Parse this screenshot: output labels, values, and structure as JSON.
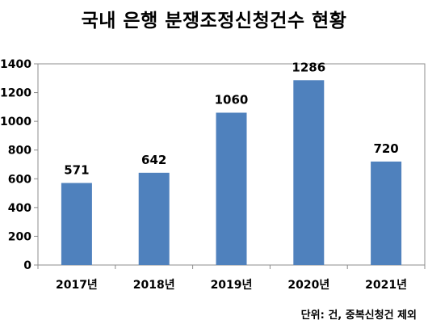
{
  "chart_data": {
    "type": "bar",
    "title": "국내 은행 분쟁조정신청건수 현황",
    "categories": [
      "2017년",
      "2018년",
      "2019년",
      "2020년",
      "2021년"
    ],
    "values": [
      571,
      642,
      1060,
      1286,
      720
    ],
    "ylim": [
      0,
      1400
    ],
    "yticks": [
      0,
      200,
      400,
      600,
      800,
      1000,
      1200,
      1400
    ],
    "grid": false,
    "legend": "none",
    "bar_color": "#4f81bd",
    "note": "단위: 건, 중복신청건 제외"
  }
}
